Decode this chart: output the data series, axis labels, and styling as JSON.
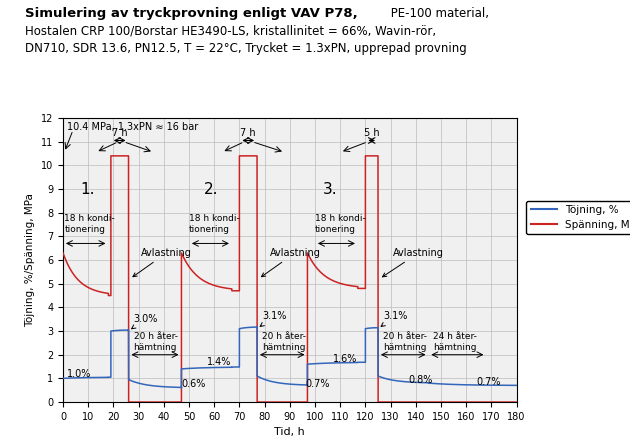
{
  "title_bold": "Simulering av tryckprovning enligt VAV P78,",
  "title_normal_same_line": " PE-100 material,",
  "title_line2": "Hostalen CRP 100/Borstar HE3490-LS, kristallinitet = 66%, Wavin-rör,",
  "title_line3": "DN710, SDR 13.6, PN12.5, T = 22°C, Trycket = 1.3xPN, upprepad provning",
  "xlabel": "Tid, h",
  "ylabel": "Töjning, %/Spänning, MPa",
  "legend_strain": "Töjning, %",
  "legend_stress": "Spänning, MPa",
  "xlim": [
    0,
    180
  ],
  "ylim": [
    0,
    12
  ],
  "xticks": [
    0,
    10,
    20,
    30,
    40,
    50,
    60,
    70,
    80,
    90,
    100,
    110,
    120,
    130,
    140,
    150,
    160,
    170,
    180
  ],
  "yticks": [
    0,
    1,
    2,
    3,
    4,
    5,
    6,
    7,
    8,
    9,
    10,
    11,
    12
  ],
  "stress_color": "#cc2222",
  "strain_color": "#3366bb",
  "grid_color": "#bbbbbb",
  "bg_color": "#f0f0f0",
  "c1_cond_start": 0,
  "c1_cond_end": 18,
  "c1_press_start": 19,
  "c1_press_end": 26,
  "c1_recov_end": 47,
  "c2_cond_start": 47,
  "c2_cond_end": 67,
  "c2_press_start": 70,
  "c2_press_end": 77,
  "c2_recov_end": 97,
  "c3_cond_start": 97,
  "c3_cond_end": 117,
  "c3_press_start": 120,
  "c3_press_end": 125,
  "c3_recov1_end": 145,
  "c3_recov2_end": 180,
  "stress_cond_start": 6.3,
  "stress_cond_end": 4.5,
  "stress_high": 10.4,
  "strain_cond1": 1.0,
  "strain_high1": 3.0,
  "strain_post1": 3.0,
  "strain_recov1_start": 0.95,
  "strain_recov1_end": 0.6,
  "strain_cond2": 1.4,
  "strain_high2": 3.1,
  "strain_recov2_start": 1.05,
  "strain_recov2_end": 0.7,
  "strain_cond3": 1.6,
  "strain_high3": 3.1,
  "strain_recov3_start": 1.1,
  "strain_recov3_mid": 0.8,
  "strain_recov3_end": 0.7
}
